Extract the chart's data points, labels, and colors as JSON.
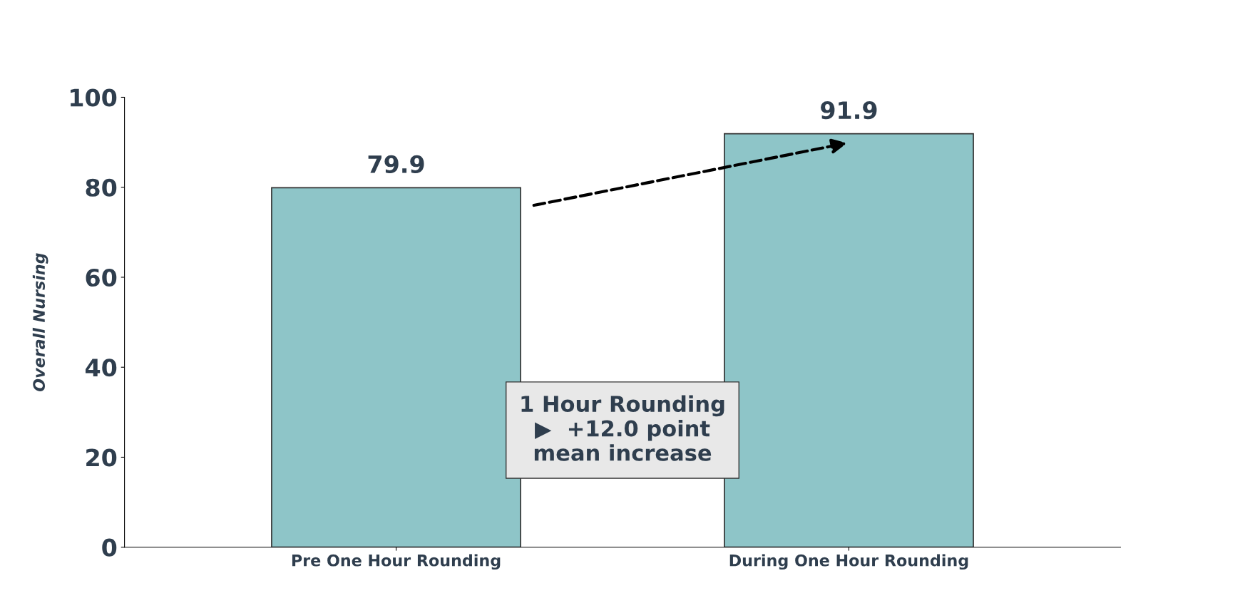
{
  "chart_data": {
    "type": "bar",
    "ylabel": "Overall Nursing",
    "categories": [
      "Pre One Hour Rounding",
      "During One Hour Rounding"
    ],
    "values": [
      79.9,
      91.9
    ],
    "color": "#8ec5c8",
    "ylim": [
      0,
      100
    ],
    "yticks": [
      0,
      20,
      40,
      60,
      80,
      100
    ],
    "grid": false,
    "data_labels": true,
    "annotations": [
      "1 Hour Rounding\n▶  +12.0 point\nmean increase"
    ]
  }
}
